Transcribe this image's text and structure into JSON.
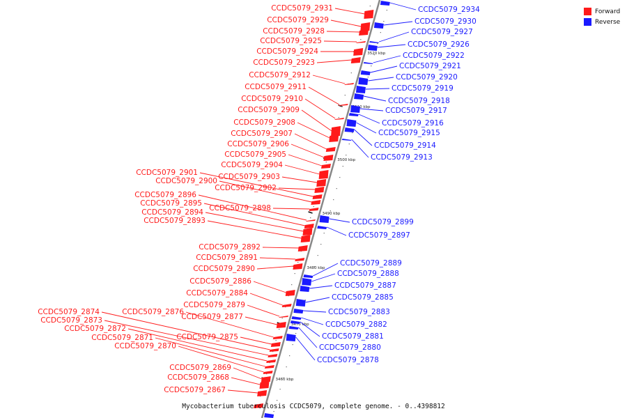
{
  "legend": {
    "forward_label": "Forward",
    "reverse_label": "Reverse",
    "forward_color": "#ff1a1a",
    "reverse_color": "#1a1aff"
  },
  "caption": "Mycobacterium tuberculosis CCDC5079, complete genome. - 0..4398812",
  "backbone_color": "#888888",
  "ticks": [
    "3460 kbp",
    "3470 kbp",
    "3480 kbp",
    "3490 kbp",
    "3500 kbp",
    "3510 kbp",
    "3520 kbp"
  ],
  "forward_genes": [
    "CCDC5079_2931",
    "CCDC5079_2929",
    "CCDC5079_2928",
    "CCDC5079_2925",
    "CCDC5079_2924",
    "CCDC5079_2923",
    "CCDC5079_2912",
    "CCDC5079_2911",
    "CCDC5079_2910",
    "CCDC5079_2909",
    "CCDC5079_2908",
    "CCDC5079_2907",
    "CCDC5079_2906",
    "CCDC5079_2905",
    "CCDC5079_2904",
    "CCDC5079_2903",
    "CCDC5079_2902",
    "CCDC5079_2901",
    "CCDC5079_2900",
    "CCDC5079_2898",
    "CCDC5079_2896",
    "CCDC5079_2895",
    "CCDC5079_2894",
    "CCDC5079_2893",
    "CCDC5079_2892",
    "CCDC5079_2891",
    "CCDC5079_2890",
    "CCDC5079_2886",
    "CCDC5079_2884",
    "CCDC5079_2879",
    "CCDC5079_2877",
    "CCDC5079_2876",
    "CCDC5079_2875",
    "CCDC5079_2874",
    "CCDC5079_2873",
    "CCDC5079_2872",
    "CCDC5079_2871",
    "CCDC5079_2870",
    "CCDC5079_2869",
    "CCDC5079_2868",
    "CCDC5079_2867"
  ],
  "reverse_genes": [
    "CCDC5079_2934",
    "CCDC5079_2930",
    "CCDC5079_2927",
    "CCDC5079_2926",
    "CCDC5079_2922",
    "CCDC5079_2921",
    "CCDC5079_2920",
    "CCDC5079_2919",
    "CCDC5079_2918",
    "CCDC5079_2917",
    "CCDC5079_2916",
    "CCDC5079_2915",
    "CCDC5079_2914",
    "CCDC5079_2913",
    "CCDC5079_2899",
    "CCDC5079_2897",
    "CCDC5079_2889",
    "CCDC5079_2888",
    "CCDC5079_2887",
    "CCDC5079_2885",
    "CCDC5079_2883",
    "CCDC5079_2882",
    "CCDC5079_2881",
    "CCDC5079_2880",
    "CCDC5079_2878"
  ]
}
